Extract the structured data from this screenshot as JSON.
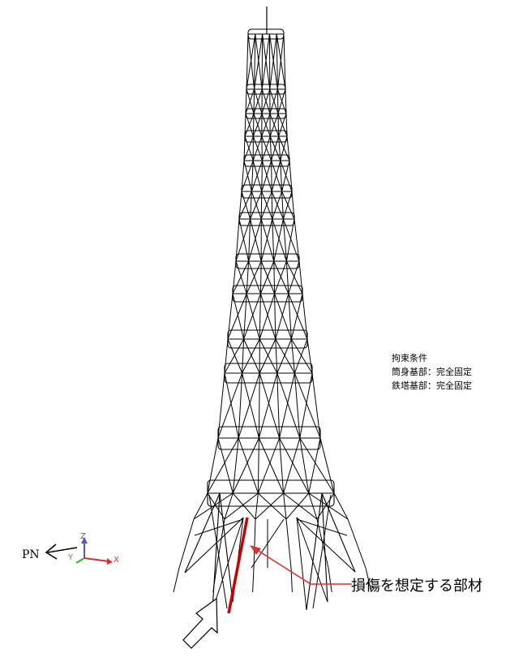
{
  "constraints": {
    "title": "拘束条件",
    "line1": "筒身基部：完全固定",
    "line2": "鉄塔基部：完全固定"
  },
  "axes": {
    "z_label": "Z",
    "y_label": "Y",
    "x_label": "X",
    "z_color": "#5555cc",
    "x_color": "#cc3333",
    "y_color": "#33aa33"
  },
  "direction_label": "PN",
  "damage_label": "損傷を想定する部材",
  "colors": {
    "structure": "#000000",
    "damaged_member": "#cc0000",
    "callout": "#e0302a"
  }
}
